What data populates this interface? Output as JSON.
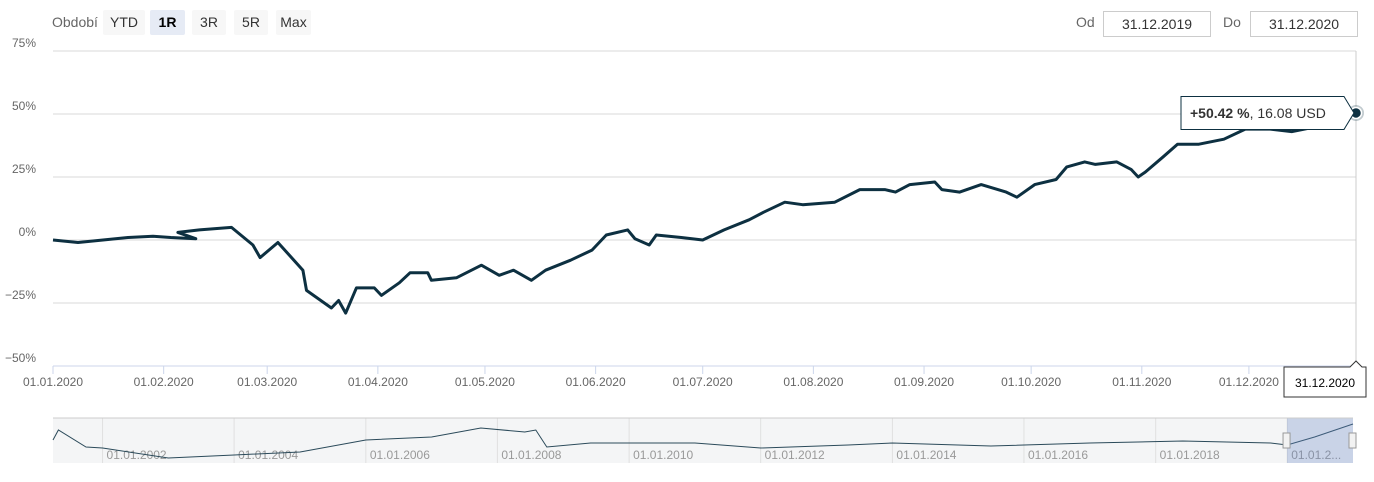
{
  "range_selector": {
    "label": "Období",
    "buttons": [
      "YTD",
      "1R",
      "3R",
      "5R",
      "Max"
    ],
    "selected": 1,
    "from_label": "Od",
    "from": "31.12.2019",
    "to_label": "Do",
    "to": "31.12.2020"
  },
  "chart_data": [
    {
      "type": "line",
      "color": "#0d3041",
      "grid": true,
      "x": [
        "01.01.2020",
        "08.01.2020",
        "15.01.2020",
        "22.01.2020",
        "29.01.2020",
        "03.02.2020",
        "10.02.2020",
        "05.02.2020",
        "11.02.2020",
        "20.02.2020",
        "26.02.2020",
        "28.02.2020",
        "04.03.2020",
        "11.03.2020",
        "12.03.2020",
        "19.03.2020",
        "21.03.2020",
        "23.03.2020",
        "26.03.2020",
        "31.03.2020",
        "02.04.2020",
        "07.04.2020",
        "10.04.2020",
        "15.04.2020",
        "16.04.2020",
        "23.04.2020",
        "30.04.2020",
        "05.05.2020",
        "09.05.2020",
        "14.05.2020",
        "18.05.2020",
        "25.05.2020",
        "31.05.2020",
        "04.06.2020",
        "10.06.2020",
        "12.06.2020",
        "16.06.2020",
        "18.06.2020",
        "25.06.2020",
        "01.07.2020",
        "07.07.2020",
        "14.07.2020",
        "18.07.2020",
        "24.07.2020",
        "29.07.2020",
        "07.08.2020",
        "14.08.2020",
        "21.08.2020",
        "24.08.2020",
        "28.08.2020",
        "04.09.2020",
        "06.09.2020",
        "11.09.2020",
        "17.09.2020",
        "24.09.2020",
        "27.09.2020",
        "02.10.2020",
        "08.10.2020",
        "11.10.2020",
        "16.10.2020",
        "19.10.2020",
        "25.10.2020",
        "29.10.2020",
        "31.10.2020",
        "02.11.2020",
        "07.11.2020",
        "11.11.2020",
        "17.11.2020",
        "24.11.2020",
        "30.11.2020",
        "07.12.2020",
        "13.12.2020",
        "20.12.2020",
        "25.12.2020",
        "31.12.2020"
      ],
      "series": [
        {
          "name": "Výkonnost",
          "color": "#0d3041",
          "values": [
            0,
            -1,
            0,
            1,
            1.5,
            1,
            0.5,
            3,
            4,
            5,
            -2,
            -7,
            -1,
            -12,
            -20,
            -27,
            -24,
            -29,
            -19,
            -19,
            -22,
            -17,
            -13,
            -13,
            -16,
            -15,
            -10,
            -14,
            -12,
            -16,
            -12,
            -8,
            -4,
            2,
            4,
            0.5,
            -2,
            2,
            1,
            0,
            4,
            8,
            11,
            15,
            14,
            15,
            20,
            20,
            19,
            22,
            23,
            20,
            19,
            22,
            19,
            17,
            22,
            24,
            29,
            31,
            30,
            31,
            28,
            25,
            27,
            33,
            38,
            38,
            40,
            44,
            44,
            43,
            45,
            48,
            50.42
          ]
        }
      ],
      "xlim": [
        "01.01.2020",
        "31.12.2020"
      ],
      "xticks": [
        "01.01.2020",
        "01.02.2020",
        "01.03.2020",
        "01.04.2020",
        "01.05.2020",
        "01.06.2020",
        "01.07.2020",
        "01.08.2020",
        "01.09.2020",
        "01.10.2020",
        "01.11.2020",
        "01.12.2020"
      ],
      "ylim": [
        -50,
        75
      ],
      "yticks": [
        {
          "value": -50,
          "label": "−50%"
        },
        {
          "value": -25,
          "label": "−25%"
        },
        {
          "value": 0,
          "label": "0%"
        },
        {
          "value": 25,
          "label": "25%"
        },
        {
          "value": 50,
          "label": "50%"
        },
        {
          "value": 75,
          "label": "75%"
        }
      ],
      "tooltip": {
        "change": "+50.42 %",
        "price": ", 16.08 USD",
        "date": "31.12.2020"
      }
    },
    {
      "type": "navigator",
      "color": "#2b4a5a",
      "x": [
        "01.04.2001",
        "01.05.2001",
        "01.10.2001",
        "01.01.2002",
        "01.01.2003",
        "01.01.2004",
        "01.01.2005",
        "01.01.2006",
        "01.01.2007",
        "01.10.2007",
        "01.06.2008",
        "01.08.2008",
        "01.10.2008",
        "01.06.2009",
        "01.01.2011",
        "01.01.2012",
        "01.05.2013",
        "01.01.2014",
        "01.07.2015",
        "01.01.2017",
        "01.06.2018",
        "01.10.2019",
        "01.01.2020",
        "01.06.2020",
        "31.12.2020"
      ],
      "values": [
        23,
        33,
        16,
        15,
        5,
        8,
        11,
        23,
        26,
        35,
        31,
        33,
        16,
        20,
        20,
        15,
        18,
        20,
        17,
        20,
        22,
        20,
        18,
        26,
        39
      ],
      "xlim": [
        "01.04.2001",
        "31.12.2020"
      ],
      "ylim": [
        0,
        45
      ],
      "xticks": [
        "01.01.2002",
        "01.01.2004",
        "01.01.2006",
        "01.01.2008",
        "01.01.2010",
        "01.01.2012",
        "01.01.2014",
        "01.01.2016",
        "01.01.2018",
        {
          "value": "01.01.2020",
          "label": "01.01.2..."
        }
      ]
    }
  ]
}
